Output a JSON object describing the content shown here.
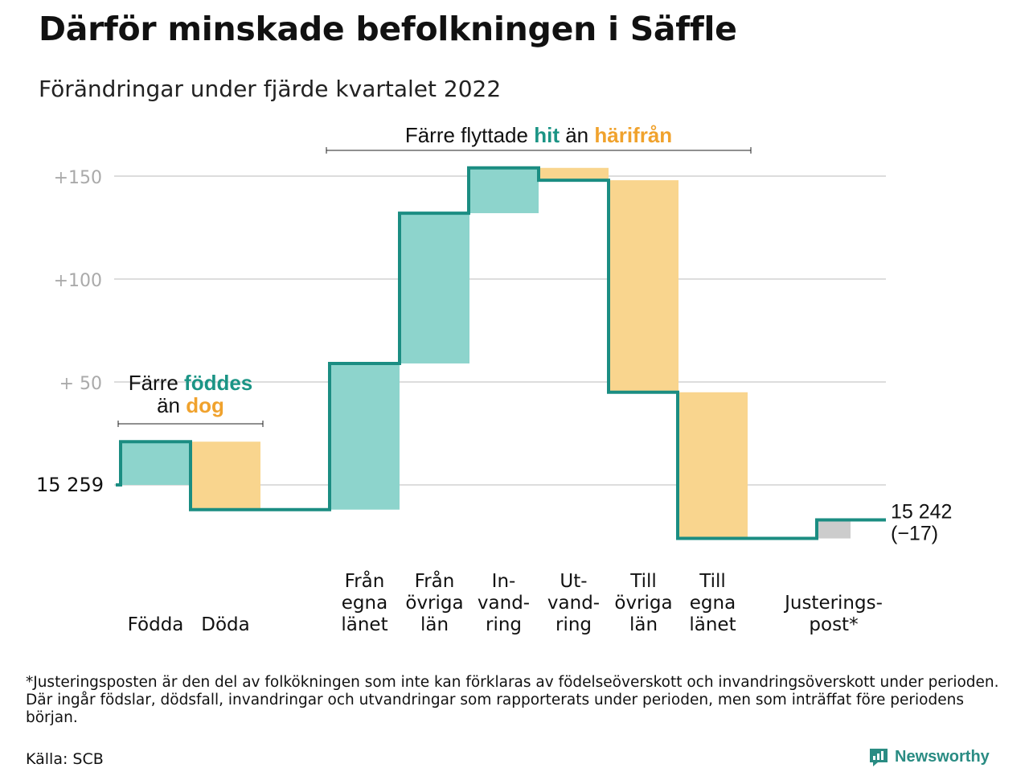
{
  "title": "Därför minskade befolkningen i Säffle",
  "subtitle": "Förändringar under fjärde kvartalet 2022",
  "annotations": {
    "births": {
      "line1_pre": "Färre ",
      "line1_hl": "föddes",
      "line2_pre": "än ",
      "line2_hl": "dog"
    },
    "moves": {
      "pre": "Färre flyttade ",
      "hl1": "hit",
      "mid": " än ",
      "hl2": "härifrån"
    }
  },
  "footnote": "*Justeringsposten är den del av folkökningen som inte kan förklaras av födelseöverskott och invandringsöverskott under perioden. Där ingår födslar, dödsfall, invandringar och utvandringar som rapporterats under perioden, men som inträffat före periodens början.",
  "source": "Källa: SCB",
  "brand": "Newsworthy",
  "colors": {
    "teal_fill": "#8dd4cc",
    "orange_fill": "#f9d58e",
    "gray_fill": "#cccccc",
    "line": "#1b8d82",
    "grid": "#dddddd",
    "tick_text": "#aaaaaa"
  },
  "chart_data": {
    "type": "waterfall",
    "start_label": "15 259",
    "start_value": 15259,
    "end_label": "15 242",
    "end_change_label": "(−17)",
    "end_value": 15242,
    "y_ticks": [
      {
        "value": 150,
        "label": "+150"
      },
      {
        "value": 100,
        "label": "+100"
      },
      {
        "value": 50,
        "label": "+ 50"
      },
      {
        "value": 0,
        "label": ""
      }
    ],
    "ylim": [
      -30,
      160
    ],
    "steps": [
      {
        "label": "Födda",
        "lines": [
          "Födda"
        ],
        "change": 21,
        "kind": "increase"
      },
      {
        "label": "Döda",
        "lines": [
          "Döda"
        ],
        "change": -33,
        "kind": "decrease"
      },
      {
        "label": "Från egna länet",
        "lines": [
          "Från",
          "egna",
          "länet"
        ],
        "change": 71,
        "kind": "increase"
      },
      {
        "label": "Från övriga län",
        "lines": [
          "Från",
          "övriga",
          "län"
        ],
        "change": 73,
        "kind": "increase"
      },
      {
        "label": "In- vand- ring",
        "lines": [
          "In-",
          "vand-",
          "ring"
        ],
        "change": 22,
        "kind": "increase"
      },
      {
        "label": "Ut- vand- ring",
        "lines": [
          "Ut-",
          "vand-",
          "ring"
        ],
        "change": -6,
        "kind": "decrease"
      },
      {
        "label": "Till övriga län",
        "lines": [
          "Till",
          "övriga",
          "län"
        ],
        "change": -103,
        "kind": "decrease"
      },
      {
        "label": "Till egna länet",
        "lines": [
          "Till",
          "egna",
          "länet"
        ],
        "change": -71,
        "kind": "decrease"
      },
      {
        "label": "Justerings- post*",
        "lines": [
          "Justerings-",
          "post*"
        ],
        "change": 9,
        "kind": "adjustment"
      }
    ]
  }
}
